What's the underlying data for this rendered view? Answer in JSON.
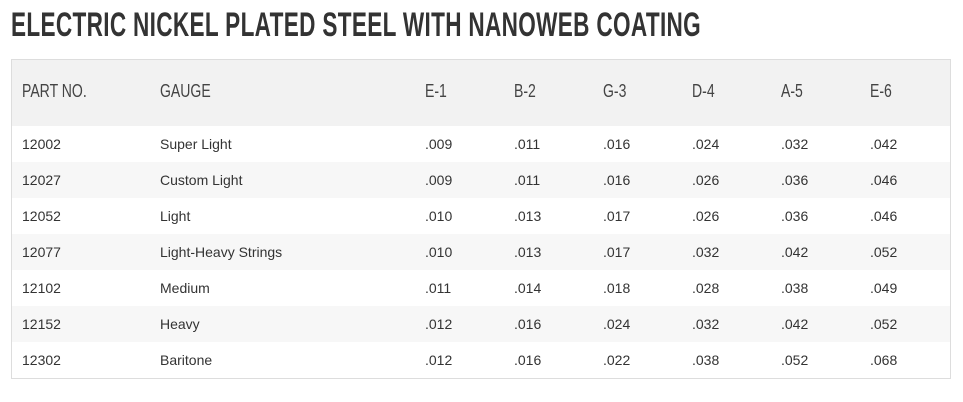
{
  "header": {
    "title": "ELECTRIC NICKEL PLATED STEEL WITH NANOWEB COATING"
  },
  "table": {
    "columns": [
      "PART NO.",
      "GAUGE",
      "E-1",
      "B-2",
      "G-3",
      "D-4",
      "A-5",
      "E-6"
    ],
    "rows": [
      [
        "12002",
        "Super Light",
        ".009",
        ".011",
        ".016",
        ".024",
        ".032",
        ".042"
      ],
      [
        "12027",
        "Custom Light",
        ".009",
        ".011",
        ".016",
        ".026",
        ".036",
        ".046"
      ],
      [
        "12052",
        "Light",
        ".010",
        ".013",
        ".017",
        ".026",
        ".036",
        ".046"
      ],
      [
        "12077",
        "Light-Heavy Strings",
        ".010",
        ".013",
        ".017",
        ".032",
        ".042",
        ".052"
      ],
      [
        "12102",
        "Medium",
        ".011",
        ".014",
        ".018",
        ".028",
        ".038",
        ".049"
      ],
      [
        "12152",
        "Heavy",
        ".012",
        ".016",
        ".024",
        ".032",
        ".042",
        ".052"
      ],
      [
        "12302",
        "Baritone",
        ".012",
        ".016",
        ".022",
        ".038",
        ".052",
        ".068"
      ]
    ]
  }
}
